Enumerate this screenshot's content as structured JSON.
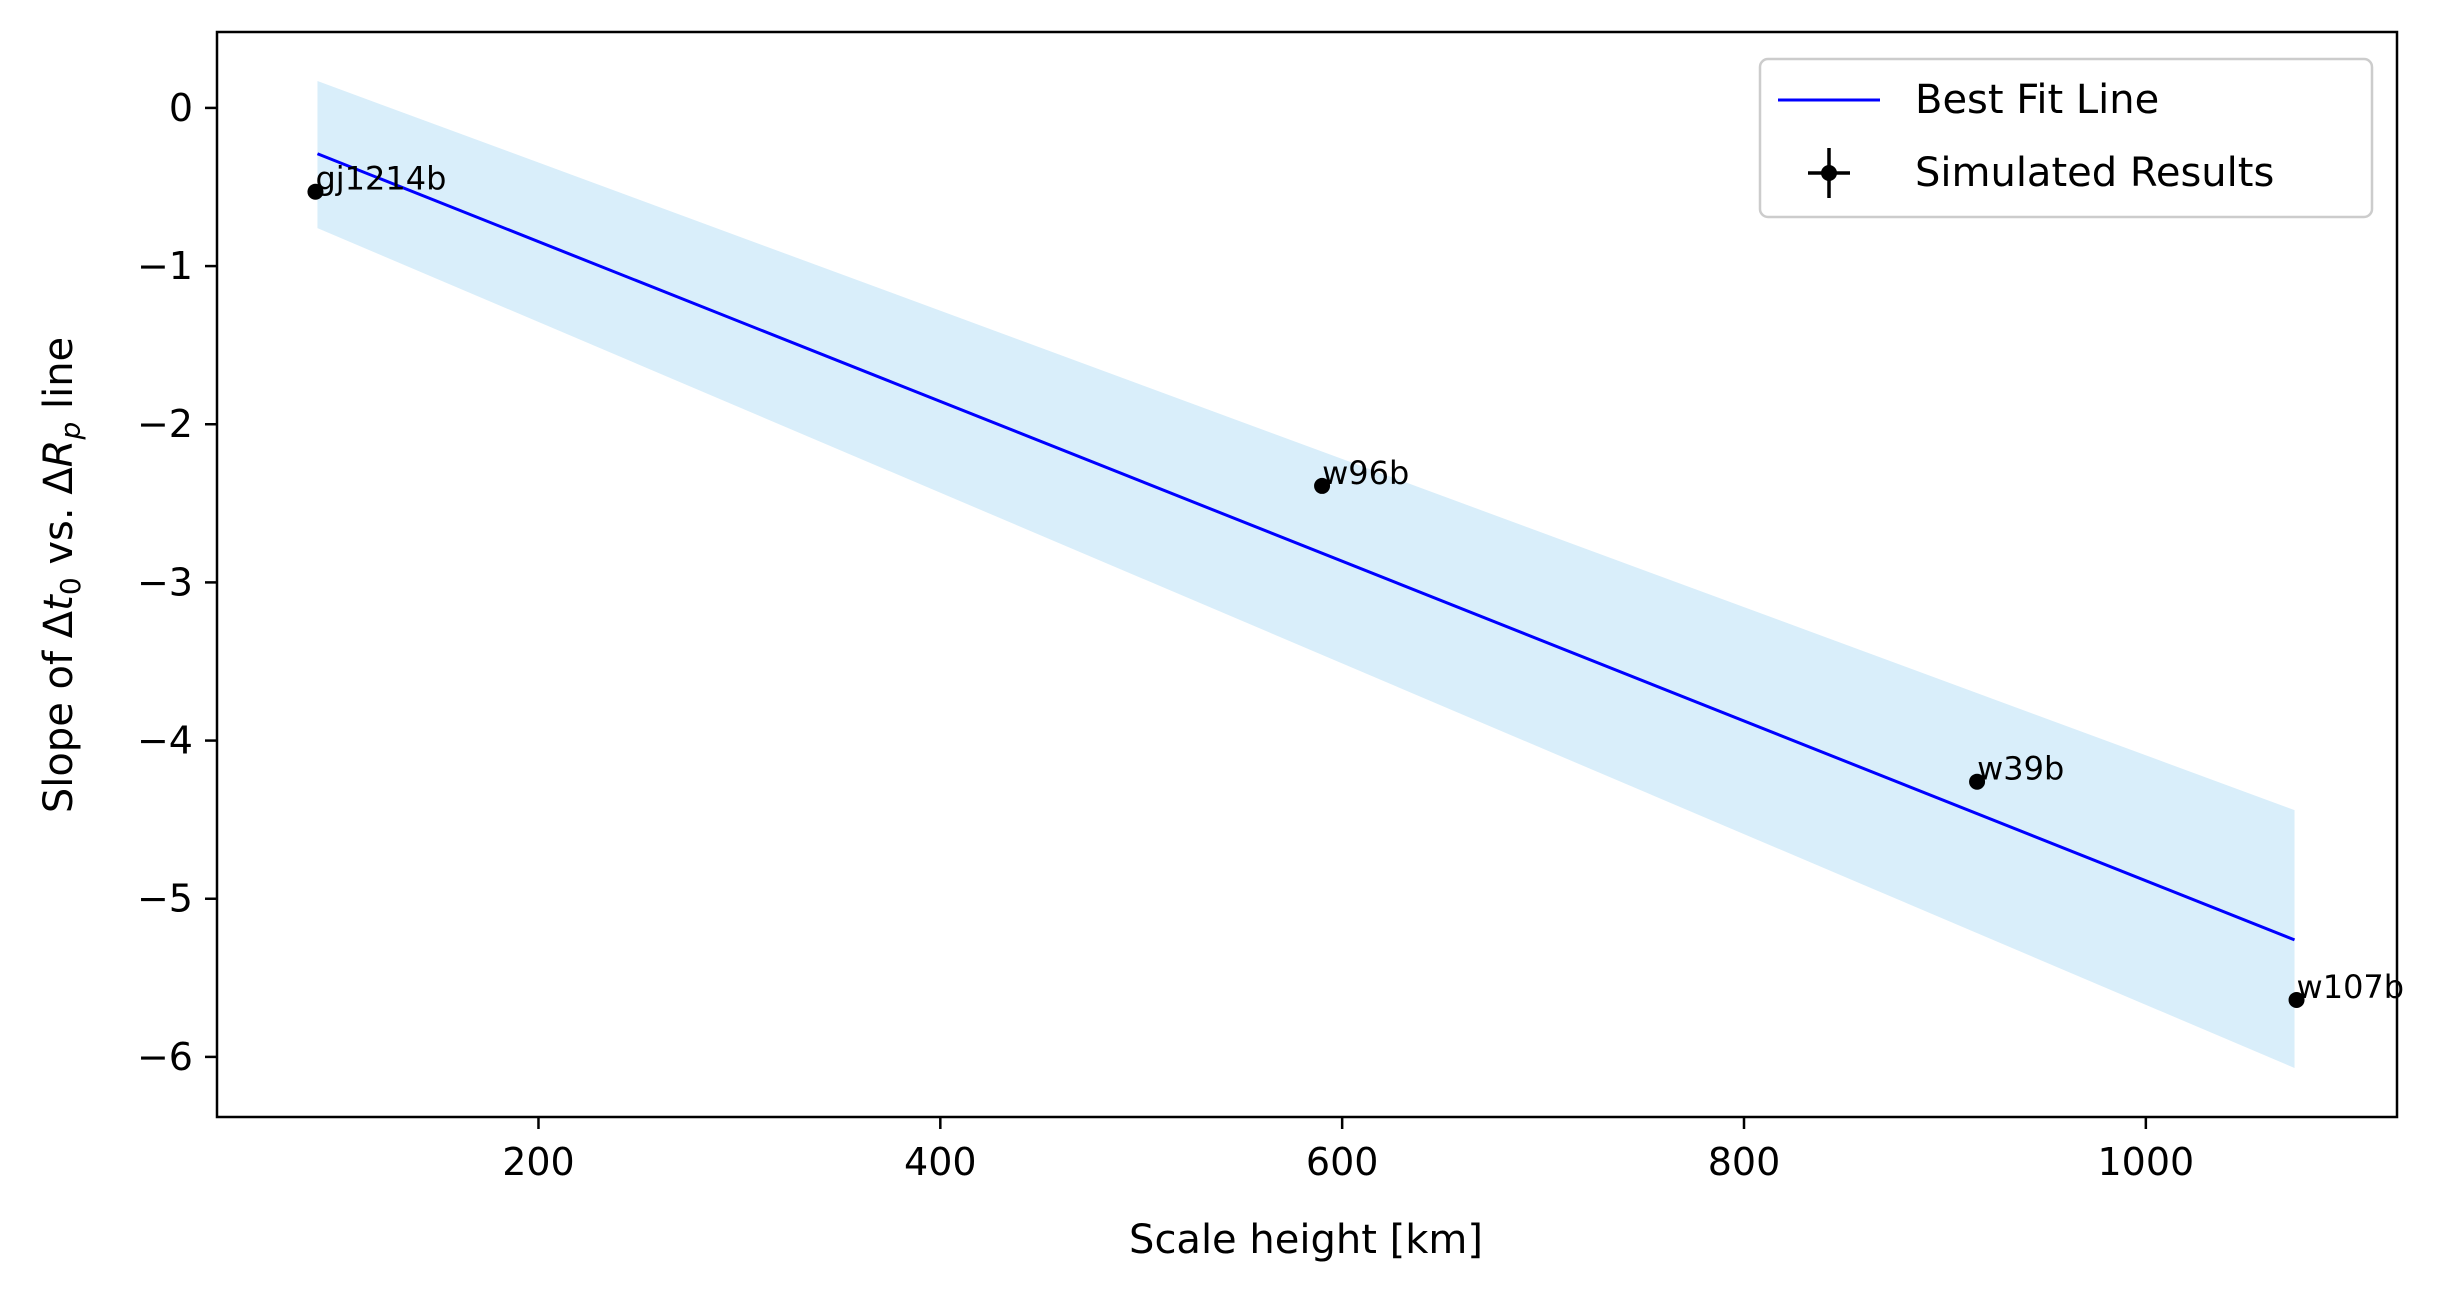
{
  "chart_data": {
    "type": "scatter",
    "title": "",
    "xlabel": "Scale height [km]",
    "ylabel_parts": {
      "prefix": "Slope of Δ",
      "t": "t",
      "t_sub": "0",
      "mid": " vs. Δ",
      "r": "R",
      "r_sub": "p",
      "suffix": " line"
    },
    "xlim": [
      40,
      1125
    ],
    "ylim": [
      -6.38,
      0.48
    ],
    "xticks": [
      200,
      400,
      600,
      800,
      1000
    ],
    "yticks": [
      0,
      -1,
      -2,
      -3,
      -4,
      -5,
      -6
    ],
    "xtick_labels": [
      "200",
      "400",
      "600",
      "800",
      "1000"
    ],
    "ytick_labels": [
      "0",
      "−1",
      "−2",
      "−3",
      "−4",
      "−5",
      "−6"
    ],
    "grid": false,
    "legend_position": "top-right",
    "series": [
      {
        "name": "Best Fit Line",
        "kind": "line",
        "color": "#0000ff",
        "x": [
          90,
          1074
        ],
        "y": [
          -0.29,
          -5.26
        ]
      },
      {
        "name": "Simulated Results",
        "kind": "scatter",
        "color": "#000000",
        "points": [
          {
            "label": "gj1214b",
            "x": 89,
            "y": -0.53
          },
          {
            "label": "w96b",
            "x": 590,
            "y": -2.39
          },
          {
            "label": "w39b",
            "x": 916,
            "y": -4.26
          },
          {
            "label": "w107b",
            "x": 1075,
            "y": -5.64
          }
        ]
      }
    ],
    "confidence_band": {
      "color": "#d9eefa",
      "x": [
        90,
        1074
      ],
      "upper": [
        0.17,
        -4.44
      ],
      "lower": [
        -0.76,
        -6.07
      ]
    }
  }
}
